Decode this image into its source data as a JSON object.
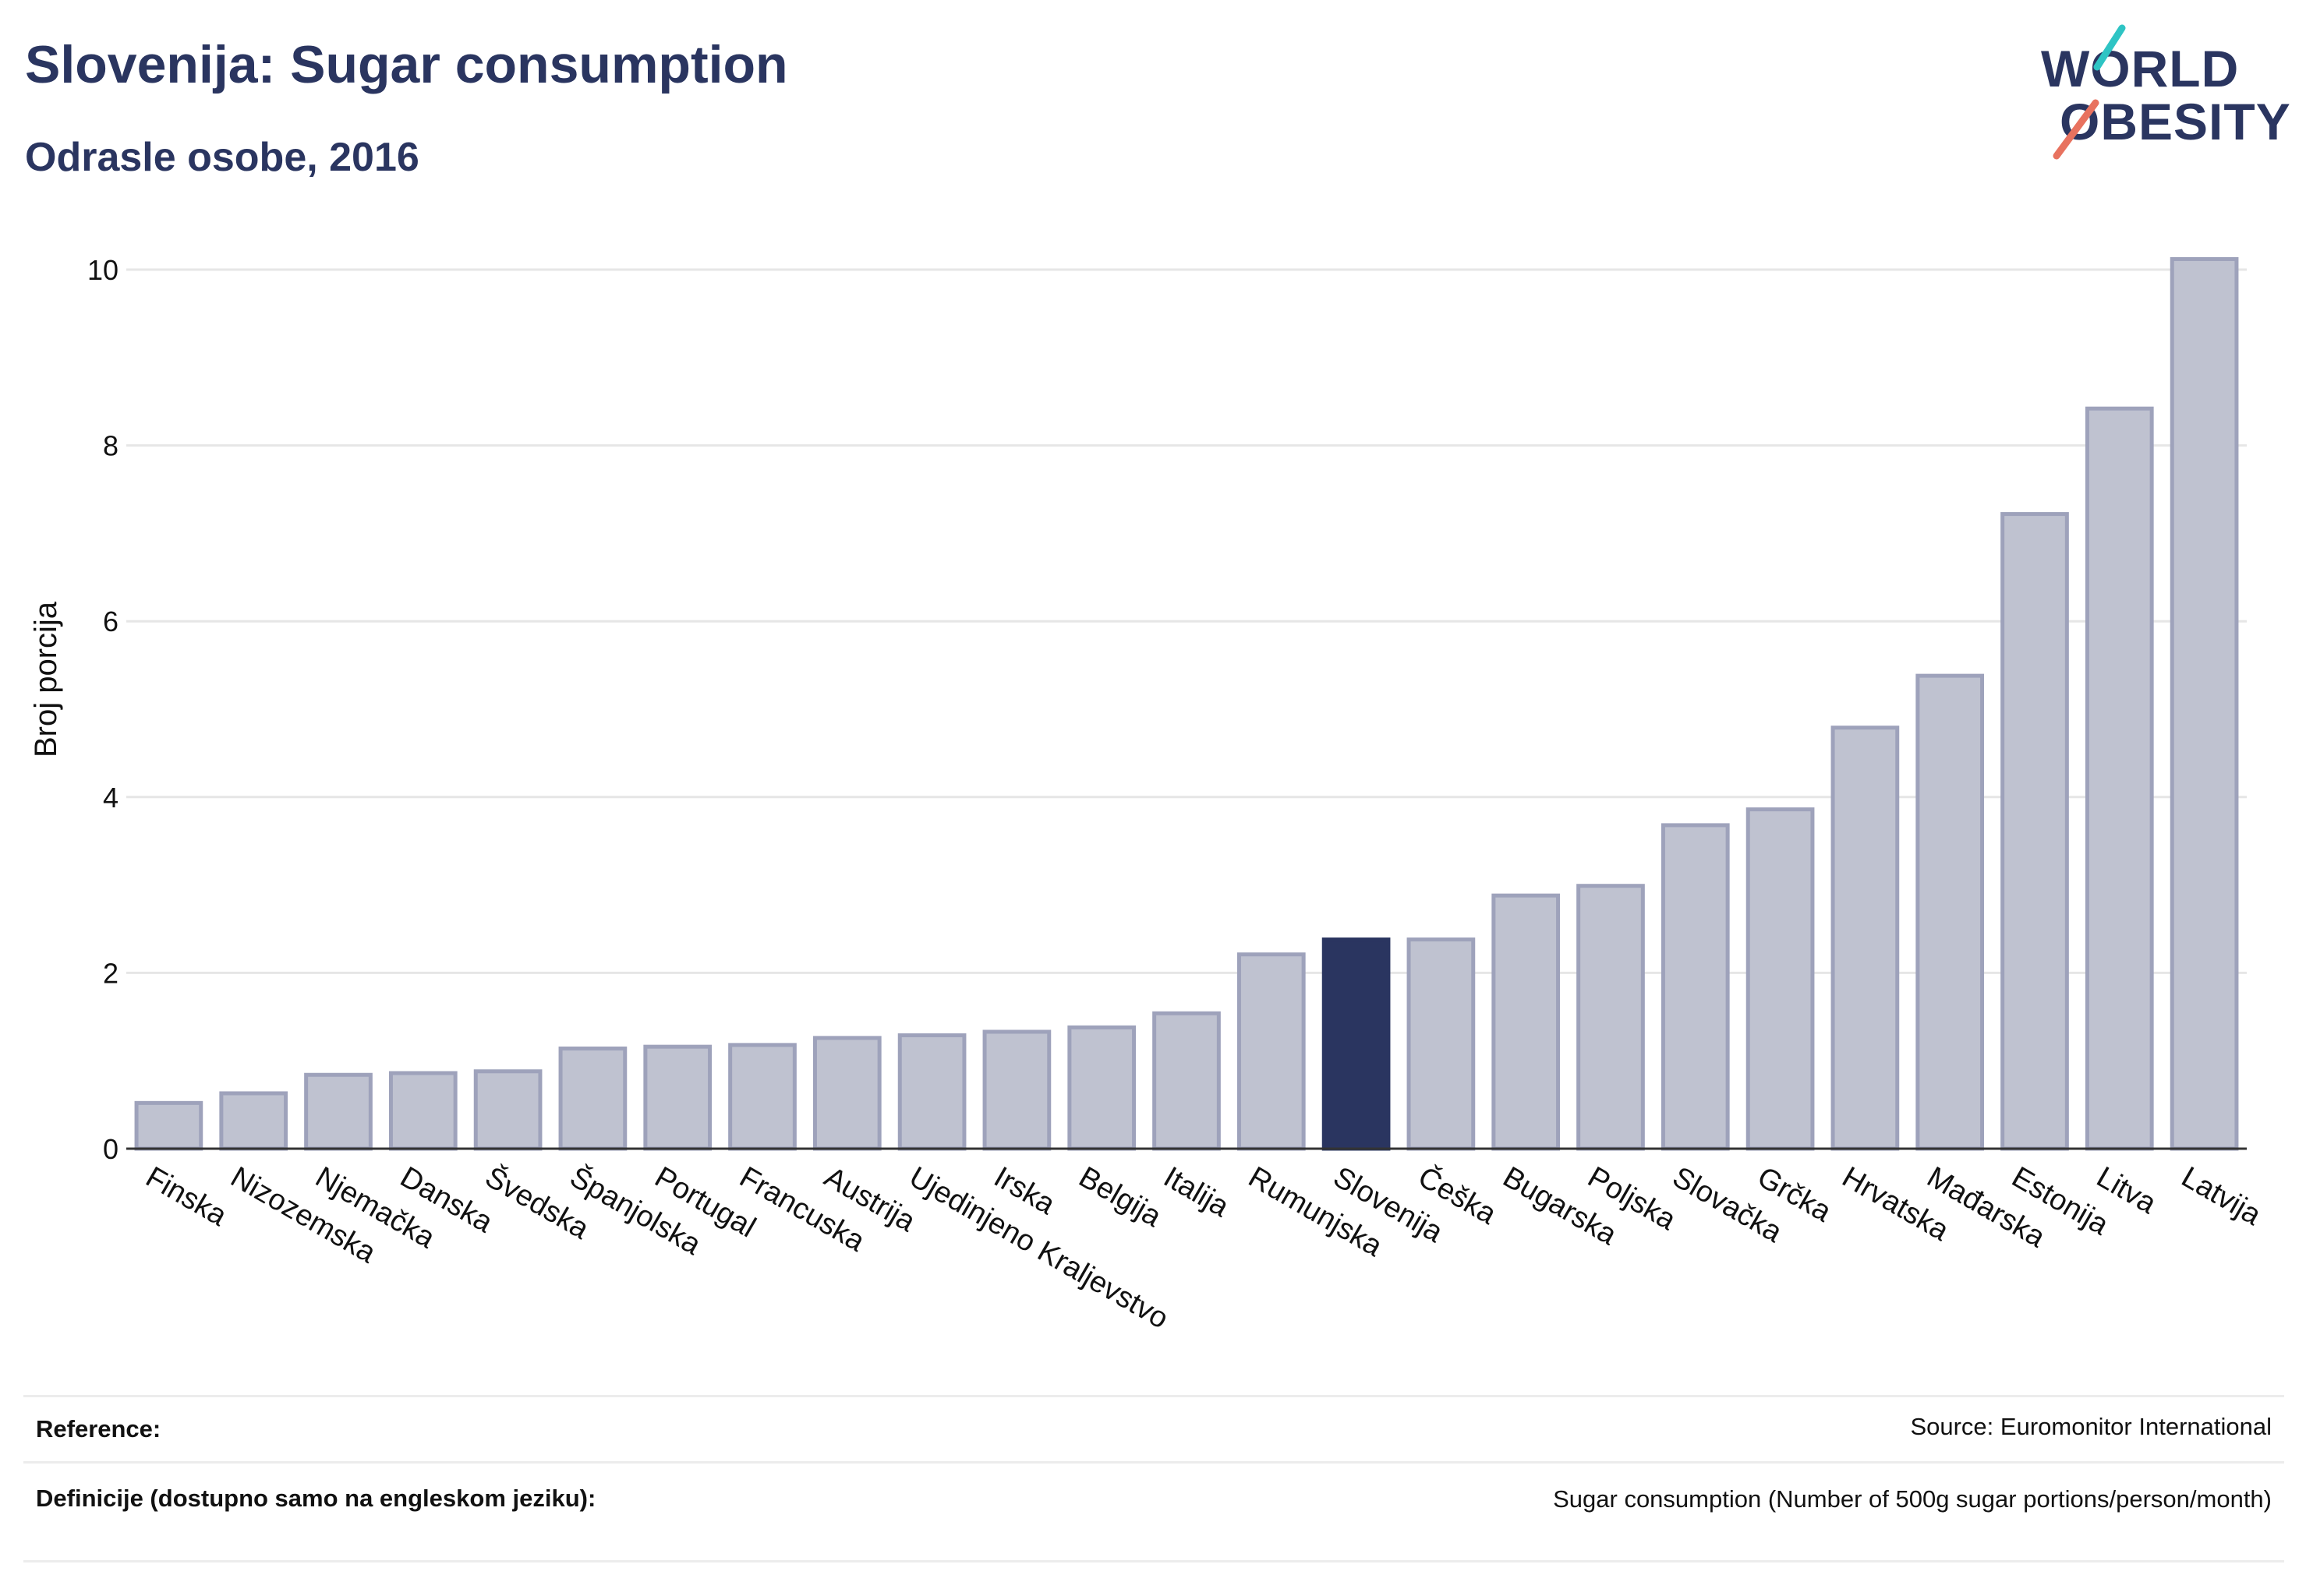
{
  "title": "Slovenija: Sugar consumption",
  "subtitle": "Odrasle osobe, 2016",
  "logo": {
    "line1": "WORLD",
    "line2": "OBESITY",
    "icon": "world-obesity-logo"
  },
  "colors": {
    "title": "#2a3560",
    "bar_default": "#bfc2d0",
    "bar_default_stroke": "#9ea2bb",
    "bar_highlight": "#2a3560",
    "gridline": "#e6e6e6",
    "logo_teal": "#2ec4c4",
    "logo_coral": "#e8725f"
  },
  "chart_data": {
    "type": "bar",
    "ylabel": "Broj porcija",
    "xlabel": "",
    "ylim": [
      0,
      10.4
    ],
    "yticks": [
      0,
      2,
      4,
      6,
      8,
      10
    ],
    "grid": true,
    "highlight": "Slovenija",
    "categories": [
      "Finska",
      "Nizozemska",
      "Njemačka",
      "Danska",
      "Švedska",
      "Španjolska",
      "Portugal",
      "Francuska",
      "Austrija",
      "Ujedinjeno Kraljevstvo",
      "Irska",
      "Belgija",
      "Italija",
      "Rumunjska",
      "Slovenija",
      "Češka",
      "Bugarska",
      "Poljska",
      "Slovačka",
      "Grčka",
      "Hrvatska",
      "Mađarska",
      "Estonija",
      "Litva",
      "Latvija"
    ],
    "values": [
      0.52,
      0.63,
      0.84,
      0.86,
      0.88,
      1.14,
      1.16,
      1.18,
      1.26,
      1.29,
      1.33,
      1.38,
      1.54,
      2.21,
      2.38,
      2.38,
      2.88,
      2.99,
      3.68,
      3.86,
      4.79,
      5.38,
      7.22,
      8.42,
      10.12
    ]
  },
  "footer": {
    "reference_label": "Reference:",
    "reference_value": "Source: Euromonitor International",
    "definitions_label": "Definicije (dostupno samo na engleskom jeziku):",
    "definitions_value": "Sugar consumption (Number of 500g sugar portions/person/month)"
  }
}
